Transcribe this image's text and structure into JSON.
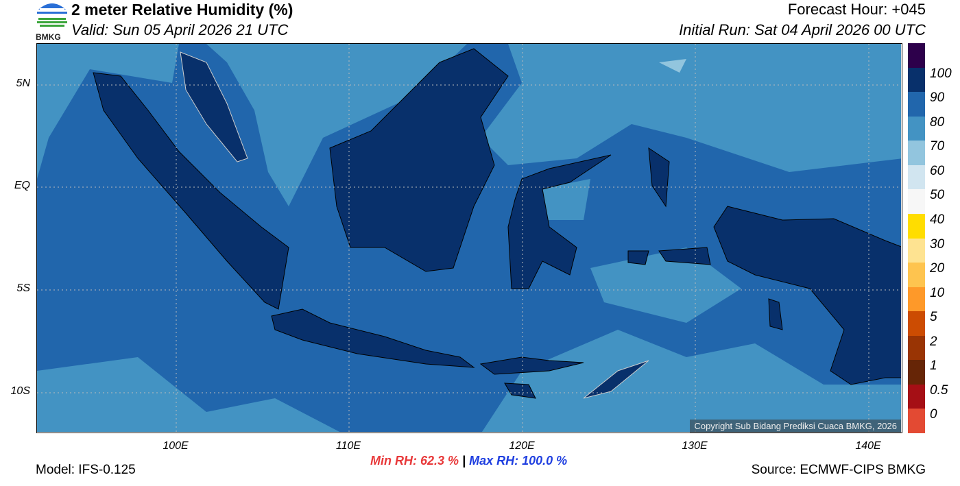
{
  "header": {
    "title": "2 meter Relative Humidity (%)",
    "valid": "Valid: Sun 05 April 2026 21 UTC",
    "forecast_hour": "Forecast Hour: +045",
    "initial_run": "Initial Run: Sat 04 April 2026 00 UTC"
  },
  "logo": {
    "text": "BMKG"
  },
  "map": {
    "lon_range": [
      92,
      142
    ],
    "lat_range": [
      -12,
      7
    ],
    "grid": true,
    "y_ticks": [
      "5N",
      "EQ",
      "5S",
      "10S"
    ],
    "x_ticks": [
      "100E",
      "110E",
      "120E",
      "130E",
      "140E"
    ],
    "ocean_color": "#2166ac",
    "moist_patch_color": "#4393c3",
    "land_color": "#08306b",
    "copyright": "Copyright Sub Bidang Prediksi Cuaca BMKG, 2026"
  },
  "colorbar": {
    "colors": [
      "#2d004b",
      "#08306b",
      "#2166ac",
      "#4393c3",
      "#92c5de",
      "#d1e5f0",
      "#f7f7f7",
      "#ffdd00",
      "#fee391",
      "#fec44f",
      "#fe9929",
      "#cc4c02",
      "#993404",
      "#662506",
      "#a50f15",
      "#e34a33"
    ],
    "labels": [
      "100",
      "90",
      "80",
      "70",
      "60",
      "50",
      "40",
      "30",
      "20",
      "10",
      "5",
      "2",
      "1",
      "0.5",
      "0"
    ]
  },
  "stats": {
    "min": "Min RH:  62.3 %",
    "sep": " | ",
    "max": "Max RH: 100.0 %",
    "min_color": "#e8393a",
    "max_color": "#1f3fe0"
  },
  "footer": {
    "model": "Model: IFS-0.125",
    "source": "Source: ECMWF-CIPS BMKG"
  }
}
